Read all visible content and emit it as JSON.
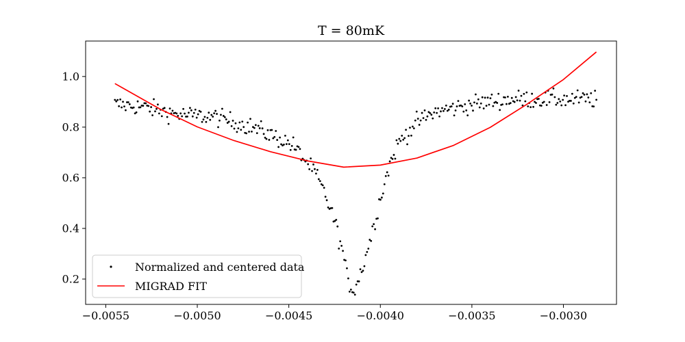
{
  "chart_data": {
    "type": "scatter",
    "title": "T = 80mK",
    "xlabel": "",
    "ylabel": "",
    "xlim": [
      -0.00561,
      -0.00271
    ],
    "ylim": [
      0.1,
      1.14
    ],
    "xticks": [
      -0.0055,
      -0.005,
      -0.0045,
      -0.004,
      -0.0035,
      -0.003
    ],
    "xtick_labels": [
      "−0.0055",
      "−0.0050",
      "−0.0045",
      "−0.0040",
      "−0.0035",
      "−0.0030"
    ],
    "yticks": [
      0.2,
      0.4,
      0.6,
      0.8,
      1.0
    ],
    "ytick_labels": [
      "0.2",
      "0.4",
      "0.6",
      "0.8",
      "1.0"
    ],
    "grid": false,
    "legend_position": "lower-left",
    "series": [
      {
        "name": "Normalized and centered data",
        "kind": "scatter",
        "color": "#000000",
        "x_range": [
          -0.00545,
          -0.00282
        ],
        "n_points": 360,
        "profile": [
          [
            -0.00545,
            0.89
          ],
          [
            -0.0053,
            0.88
          ],
          [
            -0.0051,
            0.85
          ],
          [
            -0.0049,
            0.84
          ],
          [
            -0.0047,
            0.8
          ],
          [
            -0.0046,
            0.77
          ],
          [
            -0.00448,
            0.73
          ],
          [
            -0.0044,
            0.66
          ],
          [
            -0.00435,
            0.61
          ],
          [
            -0.0043,
            0.53
          ],
          [
            -0.00425,
            0.43
          ],
          [
            -0.0042,
            0.29
          ],
          [
            -0.00418,
            0.2
          ],
          [
            -0.00415,
            0.15
          ],
          [
            -0.00412,
            0.2
          ],
          [
            -0.0041,
            0.24
          ],
          [
            -0.00405,
            0.37
          ],
          [
            -0.004,
            0.52
          ],
          [
            -0.00395,
            0.65
          ],
          [
            -0.0039,
            0.74
          ],
          [
            -0.0038,
            0.82
          ],
          [
            -0.0037,
            0.86
          ],
          [
            -0.0035,
            0.89
          ],
          [
            -0.0033,
            0.91
          ],
          [
            -0.0031,
            0.91
          ],
          [
            -0.00282,
            0.91
          ]
        ],
        "noise": 0.025
      },
      {
        "name": "MIGRAD FIT",
        "kind": "line",
        "color": "#ff0000",
        "model": "quadratic",
        "x": [
          -0.00545,
          -0.0052,
          -0.005,
          -0.0048,
          -0.0046,
          -0.0044,
          -0.0042,
          -0.004,
          -0.0038,
          -0.0036,
          -0.0034,
          -0.0032,
          -0.003,
          -0.00282
        ],
        "y": [
          0.972,
          0.87,
          0.801,
          0.747,
          0.703,
          0.667,
          0.642,
          0.65,
          0.678,
          0.728,
          0.799,
          0.89,
          0.988,
          1.097
        ]
      }
    ]
  }
}
